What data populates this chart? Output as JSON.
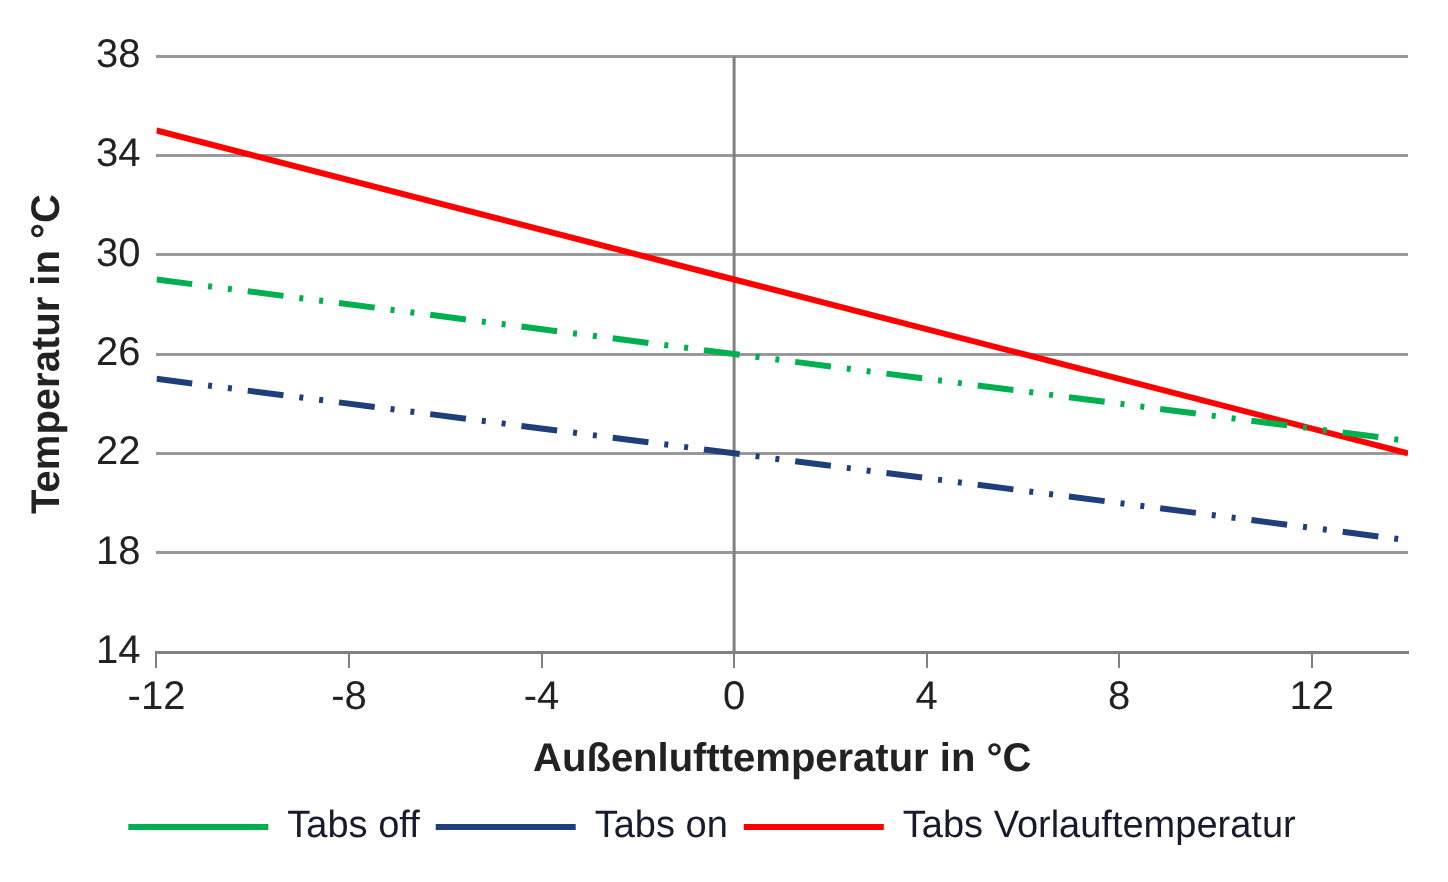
{
  "chart_data": {
    "type": "line",
    "xlabel": "Außenlufttemperatur in °C",
    "ylabel": "Temperatur in °C",
    "x": [
      -12,
      0,
      14
    ],
    "series": [
      {
        "name": "Tabs off",
        "color": "#00b050",
        "values": [
          29,
          26,
          22.5
        ],
        "line_style": "dashed"
      },
      {
        "name": "Tabs on",
        "color": "#1f3f7a",
        "values": [
          25,
          22,
          18.5
        ],
        "line_style": "dashed"
      },
      {
        "name": "Tabs Vorlauftemperatur",
        "color": "#ff0000",
        "values": [
          35,
          29,
          22
        ],
        "line_style": "solid"
      }
    ],
    "xlim": [
      -12,
      14
    ],
    "xticks": [
      -12,
      -8,
      -4,
      0,
      4,
      8,
      12
    ],
    "ylim": [
      14,
      38
    ],
    "yticks": [
      14,
      18,
      22,
      26,
      30,
      34,
      38
    ],
    "ref_lines": [
      {
        "axis": "x",
        "value": 0,
        "color": "#808080"
      }
    ],
    "grid": "y",
    "legend": "bottom",
    "marker": "none"
  }
}
